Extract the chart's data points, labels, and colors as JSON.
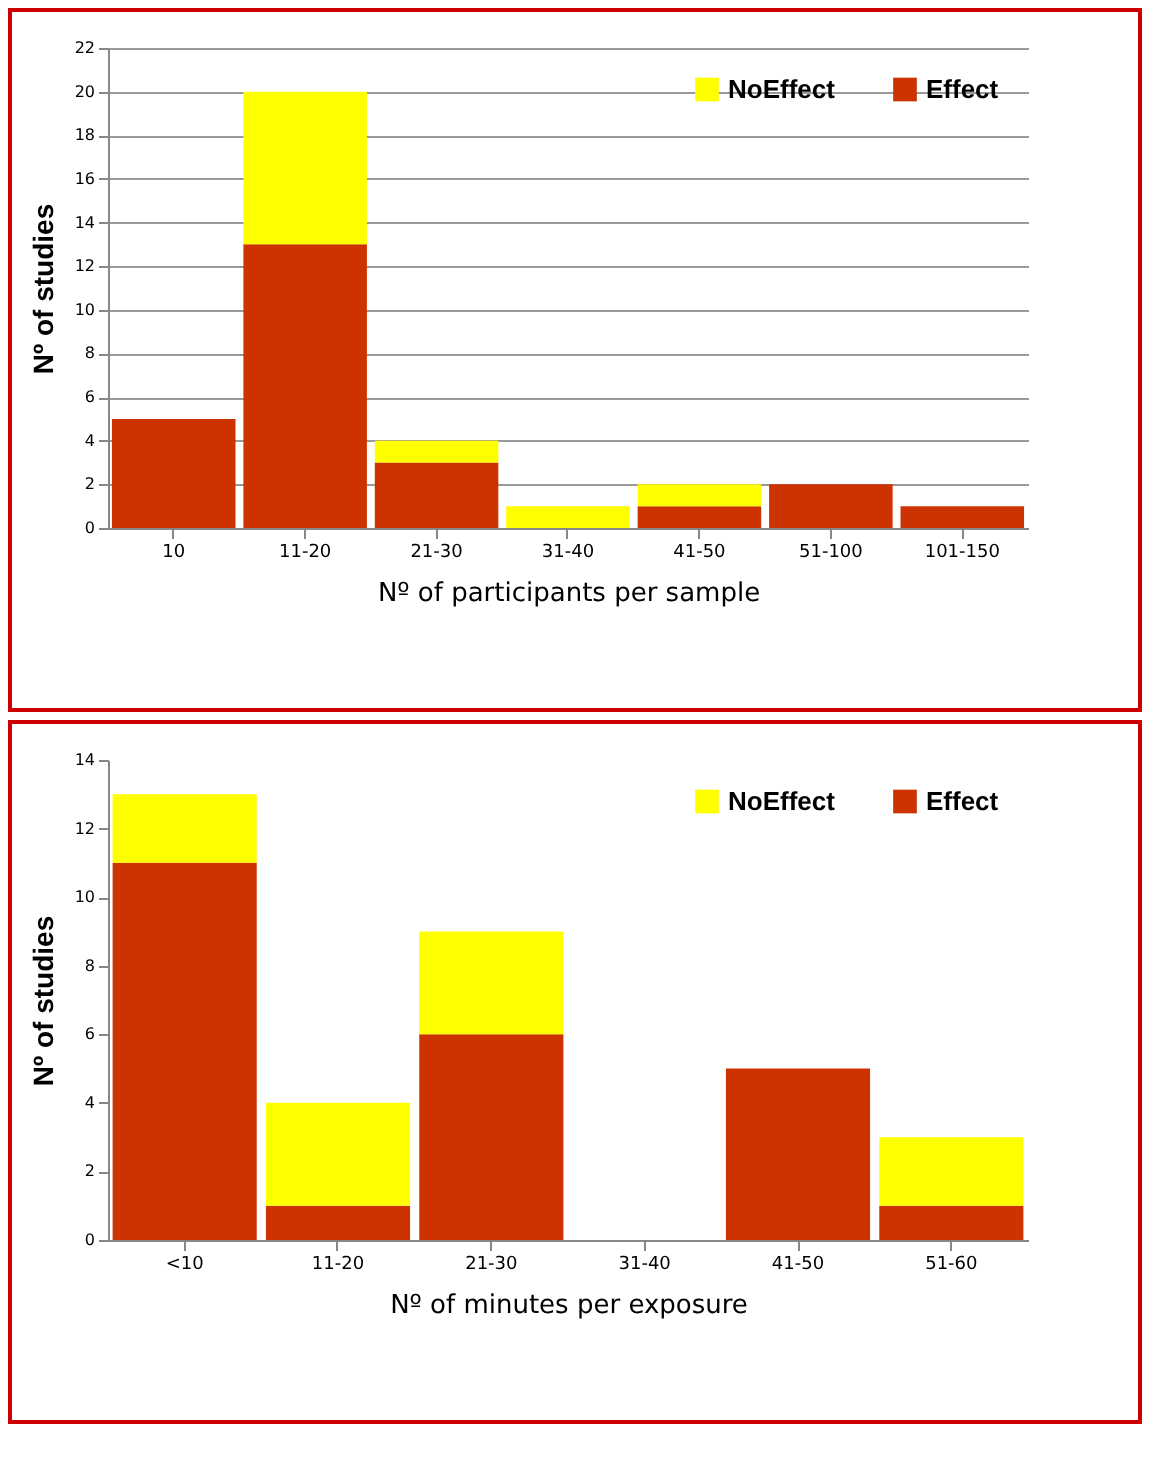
{
  "chart_data": [
    {
      "type": "bar",
      "xlabel": "Nº  of participants per sample",
      "ylabel": "Nº of studies",
      "categories": [
        "10",
        "11-20",
        "21-30",
        "31-40",
        "41-50",
        "51-100",
        "101-150"
      ],
      "stacked": true,
      "series": [
        {
          "name": "Effect",
          "color": "#cc3300",
          "values": [
            5,
            13,
            3,
            0,
            1,
            2,
            1
          ]
        },
        {
          "name": "NoEffect",
          "color": "#ffff00",
          "values": [
            0,
            7,
            1,
            1,
            1,
            0,
            0
          ]
        }
      ],
      "ylim": [
        0,
        22
      ],
      "yticks": [
        0,
        2,
        4,
        6,
        8,
        10,
        12,
        14,
        16,
        18,
        20,
        22
      ],
      "grid": "y",
      "legend": "top right"
    },
    {
      "type": "bar",
      "xlabel": "Nº  of minutes per exposure",
      "ylabel": "Nº of studies",
      "categories": [
        "<10",
        "11-20",
        "21-30",
        "31-40",
        "41-50",
        "51-60"
      ],
      "stacked": true,
      "series": [
        {
          "name": "Effect",
          "color": "#cc3300",
          "values": [
            11,
            1,
            6,
            0,
            5,
            1
          ]
        },
        {
          "name": "NoEffect",
          "color": "#ffff00",
          "values": [
            2,
            3,
            3,
            0,
            0,
            2
          ]
        }
      ],
      "ylim": [
        0,
        14
      ],
      "yticks": [
        0,
        2,
        4,
        6,
        8,
        10,
        12,
        14
      ],
      "grid": false,
      "legend": "top right"
    }
  ]
}
